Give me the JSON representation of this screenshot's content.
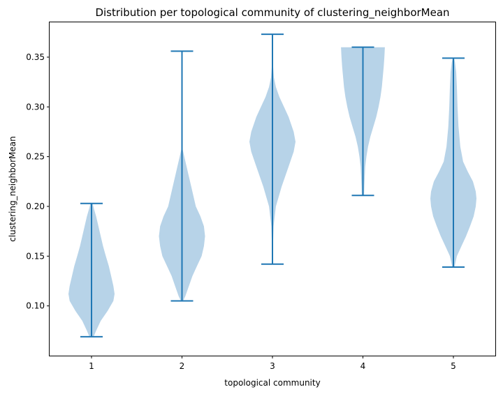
{
  "chart_data": {
    "type": "violin",
    "title": "Distribution per topological community of clustering_neighborMean",
    "xlabel": "topological community",
    "ylabel": "clustering_neighborMean",
    "categories": [
      "1",
      "2",
      "3",
      "4",
      "5"
    ],
    "yticks": [
      "0.10",
      "0.15",
      "0.20",
      "0.25",
      "0.30",
      "0.35"
    ],
    "ylim": [
      0.05,
      0.385
    ],
    "grid": false,
    "colors": {
      "body": "#b7d3e8",
      "lines": "#1f77b4"
    },
    "violins": [
      {
        "category": "1",
        "min": 0.069,
        "max": 0.203,
        "profile": [
          [
            0.069,
            0.09
          ],
          [
            0.075,
            0.2
          ],
          [
            0.085,
            0.4
          ],
          [
            0.095,
            0.7
          ],
          [
            0.105,
            0.95
          ],
          [
            0.112,
            1.0
          ],
          [
            0.12,
            0.95
          ],
          [
            0.13,
            0.85
          ],
          [
            0.14,
            0.75
          ],
          [
            0.15,
            0.62
          ],
          [
            0.16,
            0.5
          ],
          [
            0.17,
            0.4
          ],
          [
            0.18,
            0.3
          ],
          [
            0.19,
            0.2
          ],
          [
            0.198,
            0.1
          ],
          [
            0.203,
            0.05
          ]
        ]
      },
      {
        "category": "2",
        "min": 0.105,
        "max": 0.356,
        "profile": [
          [
            0.105,
            0.05
          ],
          [
            0.11,
            0.15
          ],
          [
            0.12,
            0.3
          ],
          [
            0.13,
            0.45
          ],
          [
            0.14,
            0.65
          ],
          [
            0.15,
            0.85
          ],
          [
            0.16,
            0.95
          ],
          [
            0.17,
            1.0
          ],
          [
            0.18,
            0.95
          ],
          [
            0.19,
            0.8
          ],
          [
            0.2,
            0.6
          ],
          [
            0.21,
            0.5
          ],
          [
            0.22,
            0.4
          ],
          [
            0.23,
            0.3
          ],
          [
            0.24,
            0.2
          ],
          [
            0.25,
            0.1
          ],
          [
            0.258,
            0.02
          ],
          [
            0.27,
            0.01
          ],
          [
            0.356,
            0.0
          ]
        ]
      },
      {
        "category": "3",
        "min": 0.142,
        "max": 0.373,
        "profile": [
          [
            0.142,
            0.0
          ],
          [
            0.16,
            0.02
          ],
          [
            0.18,
            0.05
          ],
          [
            0.2,
            0.15
          ],
          [
            0.22,
            0.4
          ],
          [
            0.24,
            0.7
          ],
          [
            0.255,
            0.92
          ],
          [
            0.265,
            1.0
          ],
          [
            0.275,
            0.92
          ],
          [
            0.29,
            0.7
          ],
          [
            0.3,
            0.5
          ],
          [
            0.31,
            0.3
          ],
          [
            0.32,
            0.15
          ],
          [
            0.33,
            0.06
          ],
          [
            0.34,
            0.03
          ],
          [
            0.36,
            0.01
          ],
          [
            0.373,
            0.0
          ]
        ]
      },
      {
        "category": "4",
        "min": 0.211,
        "max": 0.36,
        "profile": [
          [
            0.211,
            0.05
          ],
          [
            0.22,
            0.06
          ],
          [
            0.23,
            0.08
          ],
          [
            0.24,
            0.1
          ],
          [
            0.25,
            0.15
          ],
          [
            0.26,
            0.22
          ],
          [
            0.27,
            0.32
          ],
          [
            0.28,
            0.45
          ],
          [
            0.29,
            0.58
          ],
          [
            0.3,
            0.68
          ],
          [
            0.31,
            0.76
          ],
          [
            0.32,
            0.82
          ],
          [
            0.33,
            0.86
          ],
          [
            0.34,
            0.9
          ],
          [
            0.35,
            0.93
          ],
          [
            0.36,
            0.95
          ]
        ]
      },
      {
        "category": "5",
        "min": 0.139,
        "max": 0.349,
        "profile": [
          [
            0.139,
            0.05
          ],
          [
            0.15,
            0.15
          ],
          [
            0.16,
            0.35
          ],
          [
            0.17,
            0.55
          ],
          [
            0.18,
            0.72
          ],
          [
            0.19,
            0.88
          ],
          [
            0.2,
            0.97
          ],
          [
            0.208,
            1.0
          ],
          [
            0.215,
            0.97
          ],
          [
            0.225,
            0.85
          ],
          [
            0.235,
            0.62
          ],
          [
            0.245,
            0.42
          ],
          [
            0.26,
            0.3
          ],
          [
            0.28,
            0.22
          ],
          [
            0.3,
            0.18
          ],
          [
            0.32,
            0.15
          ],
          [
            0.335,
            0.12
          ],
          [
            0.345,
            0.07
          ],
          [
            0.349,
            0.03
          ]
        ]
      }
    ]
  }
}
